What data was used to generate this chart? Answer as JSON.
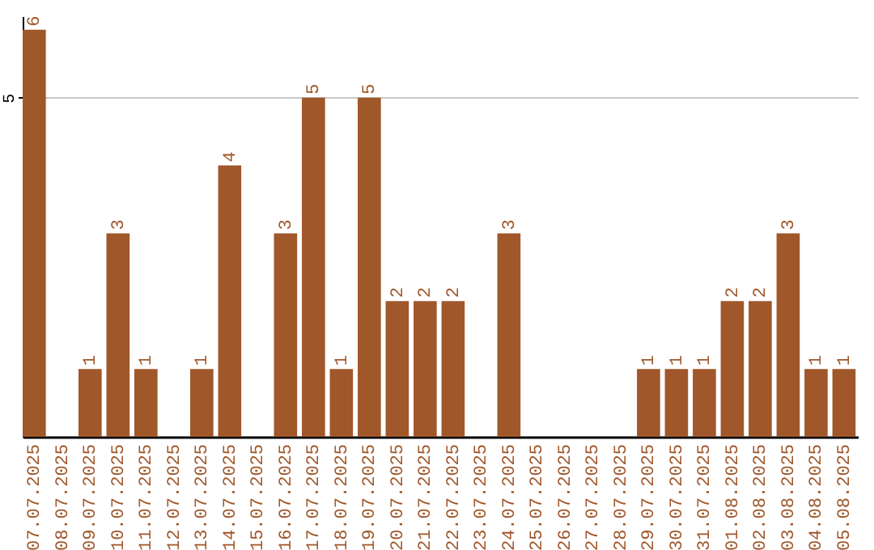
{
  "chart_data": {
    "type": "bar",
    "categories": [
      "07.07.2025",
      "08.07.2025",
      "09.07.2025",
      "10.07.2025",
      "11.07.2025",
      "12.07.2025",
      "13.07.2025",
      "14.07.2025",
      "15.07.2025",
      "16.07.2025",
      "17.07.2025",
      "18.07.2025",
      "19.07.2025",
      "20.07.2025",
      "21.07.2025",
      "22.07.2025",
      "23.07.2025",
      "24.07.2025",
      "25.07.2025",
      "26.07.2025",
      "27.07.2025",
      "28.07.2025",
      "29.07.2025",
      "30.07.2025",
      "31.07.2025",
      "01.08.2025",
      "02.08.2025",
      "03.08.2025",
      "04.08.2025",
      "05.08.2025"
    ],
    "values": [
      6,
      0,
      1,
      3,
      1,
      0,
      1,
      4,
      0,
      3,
      5,
      1,
      5,
      2,
      2,
      2,
      0,
      3,
      0,
      0,
      0,
      0,
      1,
      1,
      1,
      2,
      2,
      3,
      1,
      1
    ],
    "value_labels": [
      "6",
      null,
      "1",
      "3",
      "1",
      null,
      "1",
      "4",
      null,
      "3",
      "5",
      "1",
      "5",
      "2",
      "2",
      "2",
      null,
      "3",
      null,
      null,
      null,
      null,
      "1",
      "1",
      "1",
      "2",
      "2",
      "3",
      "1",
      "1"
    ],
    "color": "#a0572a",
    "ylim": [
      0,
      6.2
    ],
    "yticks": [
      5
    ],
    "grid": "y"
  }
}
